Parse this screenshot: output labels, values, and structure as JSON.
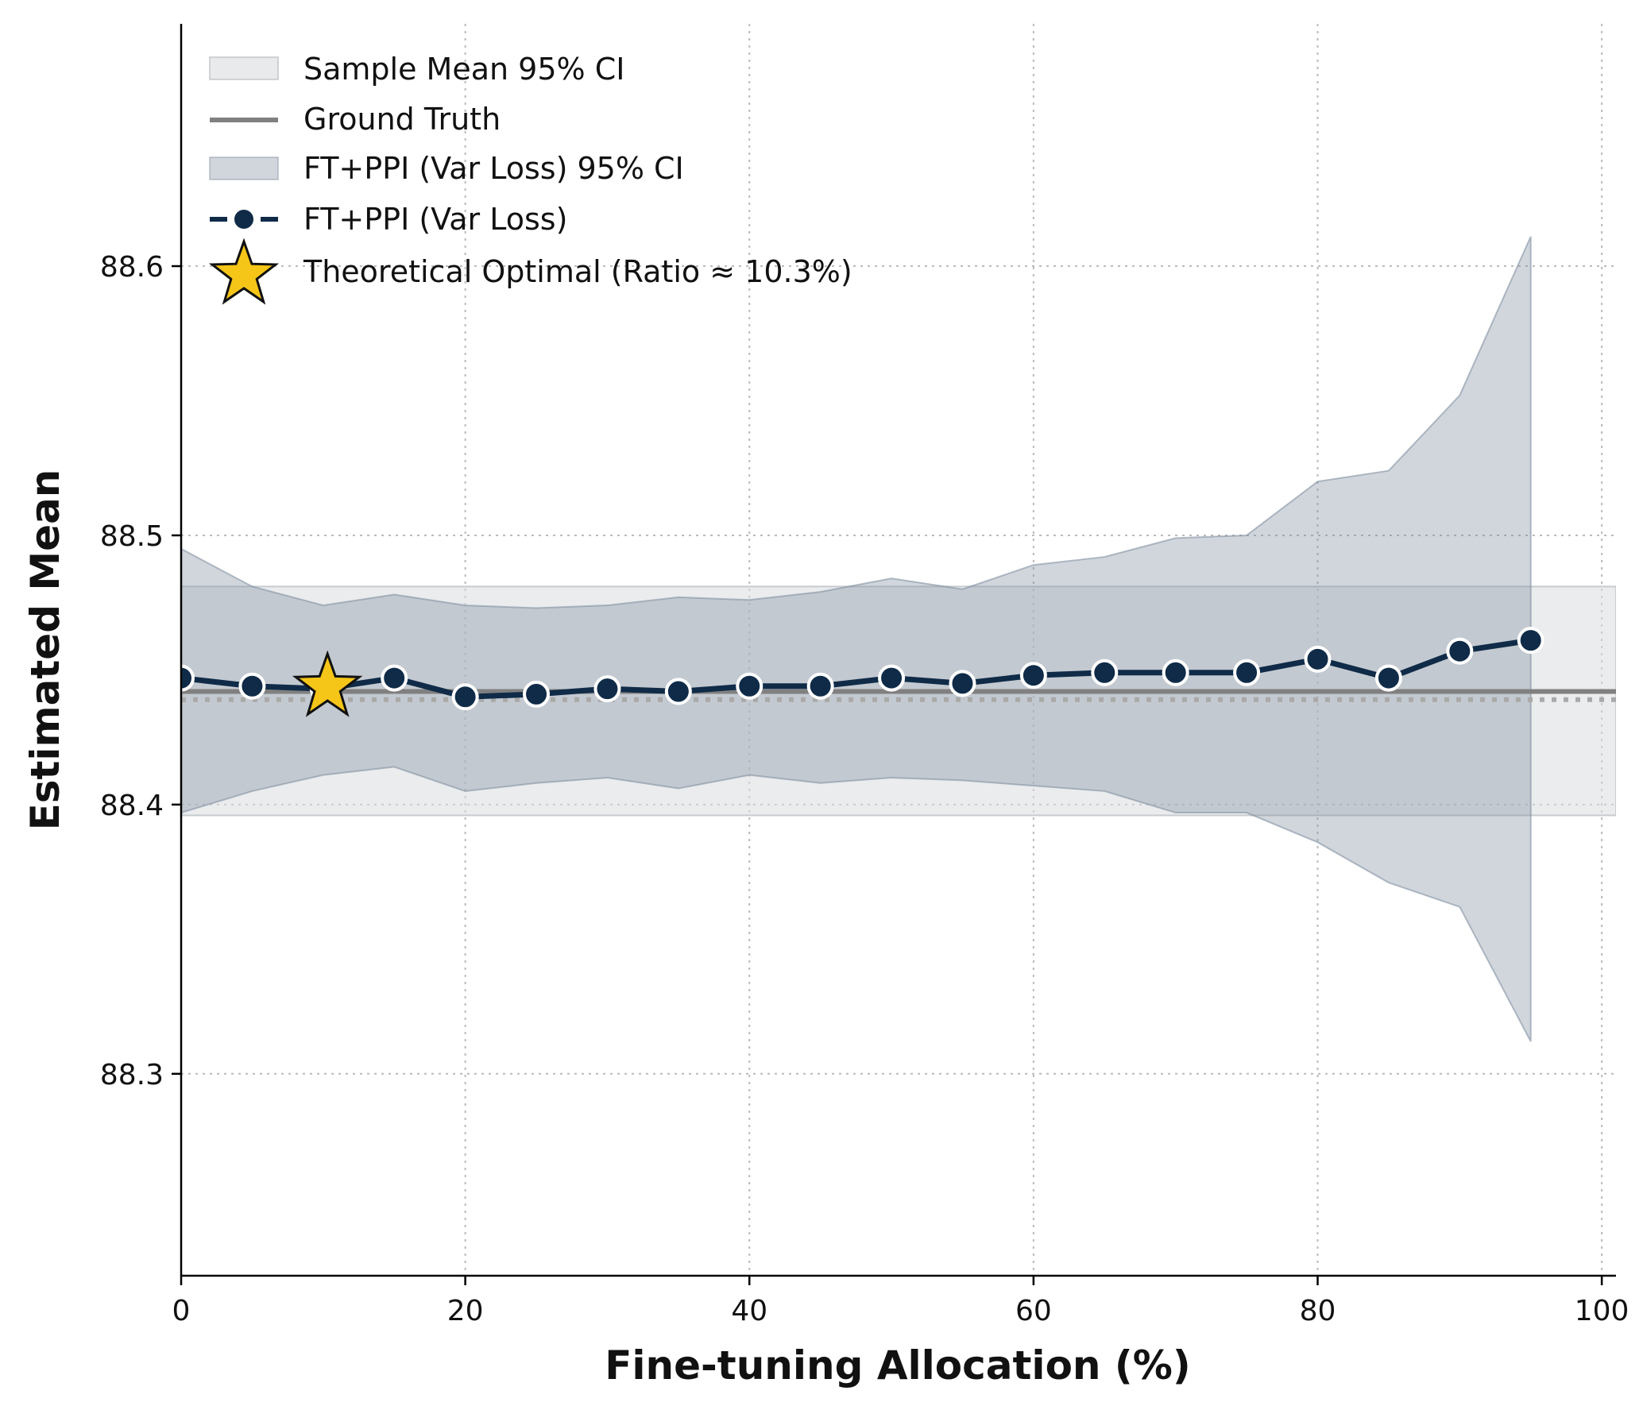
{
  "chart_data": {
    "type": "line",
    "xlabel": "Fine-tuning Allocation (%)",
    "ylabel": "Estimated Mean",
    "xlim": [
      0,
      101
    ],
    "ylim": [
      88.225,
      88.69
    ],
    "xticks": [
      0,
      20,
      40,
      60,
      80,
      100
    ],
    "yticks": [
      88.3,
      88.4,
      88.5,
      88.6
    ],
    "xtick_labels": [
      "0",
      "20",
      "40",
      "60",
      "80",
      "100"
    ],
    "ytick_labels": [
      "88.3",
      "88.4",
      "88.5",
      "88.6"
    ],
    "grid": true,
    "ground_truth": 88.442,
    "sample_mean": 88.439,
    "sample_mean_ci": [
      88.396,
      88.481
    ],
    "series": [
      {
        "name": "FT+PPI (Var Loss)",
        "x": [
          0,
          5,
          10,
          15,
          20,
          25,
          30,
          35,
          40,
          45,
          50,
          55,
          60,
          65,
          70,
          75,
          80,
          85,
          90,
          95
        ],
        "values": [
          88.447,
          88.444,
          88.443,
          88.447,
          88.44,
          88.441,
          88.443,
          88.442,
          88.444,
          88.444,
          88.447,
          88.445,
          88.448,
          88.449,
          88.449,
          88.449,
          88.454,
          88.447,
          88.457,
          88.461
        ],
        "ci_lower": [
          88.397,
          88.405,
          88.411,
          88.414,
          88.405,
          88.408,
          88.41,
          88.406,
          88.411,
          88.408,
          88.41,
          88.409,
          88.407,
          88.405,
          88.397,
          88.397,
          88.386,
          88.371,
          88.362,
          88.312
        ],
        "ci_upper": [
          88.495,
          88.481,
          88.474,
          88.478,
          88.474,
          88.473,
          88.474,
          88.477,
          88.476,
          88.479,
          88.484,
          88.48,
          88.489,
          88.492,
          88.499,
          88.5,
          88.52,
          88.524,
          88.552,
          88.611
        ]
      }
    ],
    "optimal_point": {
      "x": 10.3,
      "y": 88.443
    },
    "legend": {
      "location": "top-left",
      "entries": [
        "Sample Mean 95% CI",
        "Ground Truth",
        "FT+PPI (Var Loss) 95% CI",
        "FT+PPI (Var Loss)",
        "Theoretical Optimal (Ratio ≈ 10.3%)"
      ]
    },
    "colors": {
      "series": "#0f2b48",
      "series_ci": "#7a8a9c",
      "sample_ci": "#d8dcdf",
      "ground_truth": "#808080",
      "sample_mean_line": "#a9a9a9",
      "star": "#f5c518",
      "grid": "#bbbbbb"
    }
  }
}
